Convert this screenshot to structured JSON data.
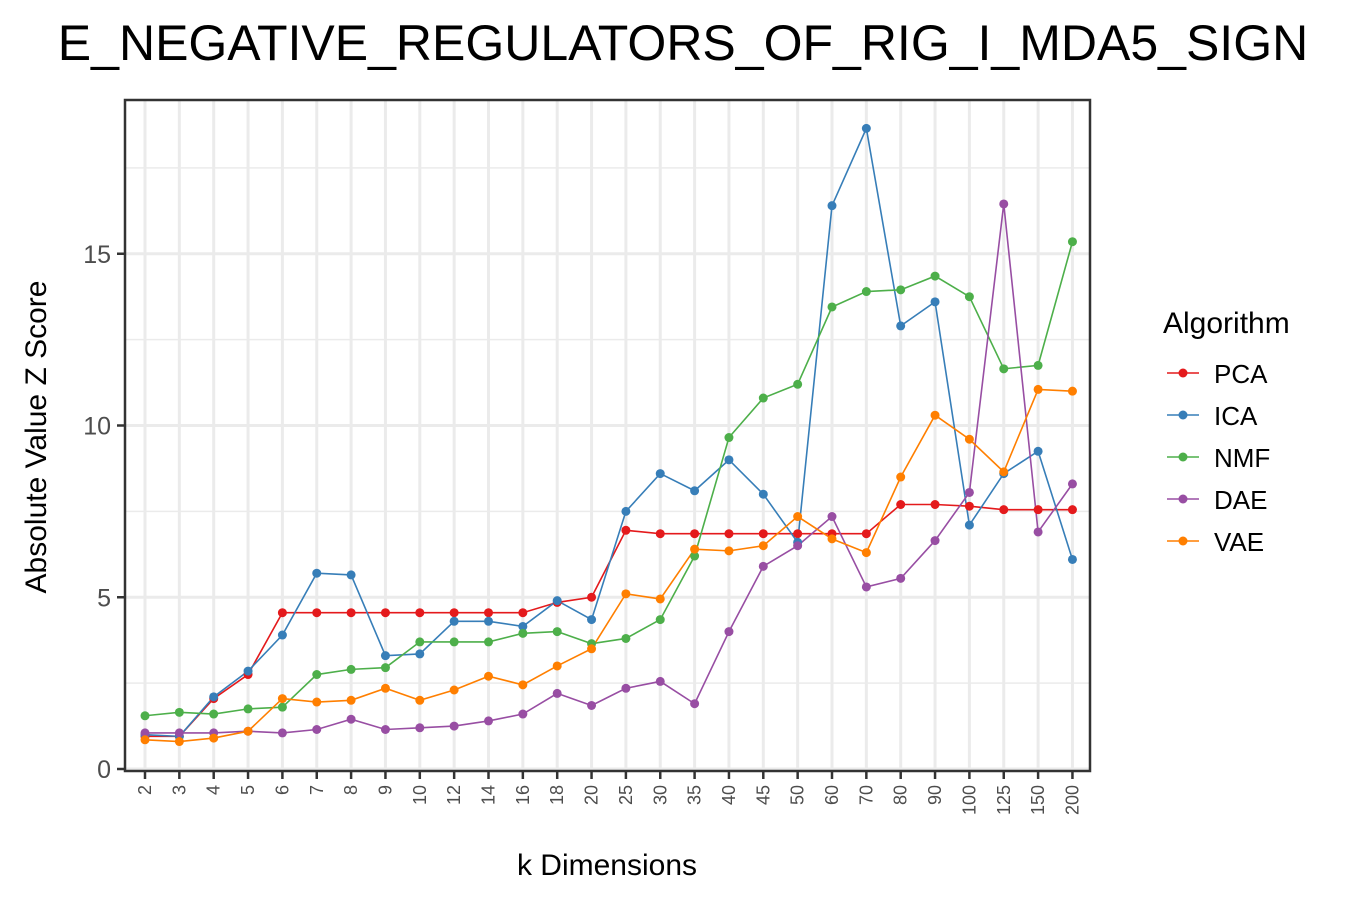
{
  "chart_data": {
    "type": "line",
    "title": "E_NEGATIVE_REGULATORS_OF_RIG_I_MDA5_SIGN",
    "xlabel": "k Dimensions",
    "ylabel": "Absolute Value Z Score",
    "ylim": [
      0,
      19.5
    ],
    "yticks": [
      0,
      5,
      10,
      15
    ],
    "grid": true,
    "legend_title": "Algorithm",
    "legend_position": "right",
    "categories": [
      "2",
      "3",
      "4",
      "5",
      "6",
      "7",
      "8",
      "9",
      "10",
      "12",
      "14",
      "16",
      "18",
      "20",
      "25",
      "30",
      "35",
      "40",
      "45",
      "50",
      "60",
      "70",
      "80",
      "90",
      "100",
      "125",
      "150",
      "200"
    ],
    "series": [
      {
        "name": "PCA",
        "color": "#e41a1c",
        "values": [
          0.95,
          0.95,
          2.05,
          2.75,
          4.55,
          4.55,
          4.55,
          4.55,
          4.55,
          4.55,
          4.55,
          4.55,
          4.85,
          5.0,
          6.95,
          6.85,
          6.85,
          6.85,
          6.85,
          6.85,
          6.85,
          6.85,
          7.7,
          7.7,
          7.65,
          7.55,
          7.55,
          7.55
        ]
      },
      {
        "name": "ICA",
        "color": "#377eb8",
        "values": [
          1.0,
          0.95,
          2.1,
          2.85,
          3.9,
          5.7,
          5.65,
          3.3,
          3.35,
          4.3,
          4.3,
          4.15,
          4.9,
          4.35,
          7.5,
          8.6,
          8.1,
          9.0,
          8.0,
          6.6,
          16.4,
          18.65,
          12.9,
          13.6,
          7.1,
          8.6,
          9.25,
          6.1
        ]
      },
      {
        "name": "NMF",
        "color": "#4daf4a",
        "values": [
          1.55,
          1.65,
          1.6,
          1.75,
          1.8,
          2.75,
          2.9,
          2.95,
          3.7,
          3.7,
          3.7,
          3.95,
          4.0,
          3.65,
          3.8,
          4.35,
          6.2,
          9.65,
          10.8,
          11.2,
          13.45,
          13.9,
          13.95,
          14.35,
          13.75,
          11.65,
          11.75,
          15.35
        ]
      },
      {
        "name": "DAE",
        "color": "#984ea3",
        "values": [
          1.05,
          1.05,
          1.05,
          1.1,
          1.05,
          1.15,
          1.45,
          1.15,
          1.2,
          1.25,
          1.4,
          1.6,
          2.2,
          1.85,
          2.35,
          2.55,
          1.9,
          4.0,
          5.9,
          6.5,
          7.35,
          5.3,
          5.55,
          6.65,
          8.05,
          16.45,
          6.9,
          8.3
        ]
      },
      {
        "name": "VAE",
        "color": "#ff7f00",
        "values": [
          0.85,
          0.8,
          0.9,
          1.1,
          2.05,
          1.95,
          2.0,
          2.35,
          2.0,
          2.3,
          2.7,
          2.45,
          3.0,
          3.5,
          5.1,
          4.95,
          6.4,
          6.35,
          6.5,
          7.35,
          6.7,
          6.3,
          8.5,
          10.3,
          9.6,
          8.65,
          11.05,
          11.0
        ]
      }
    ]
  }
}
